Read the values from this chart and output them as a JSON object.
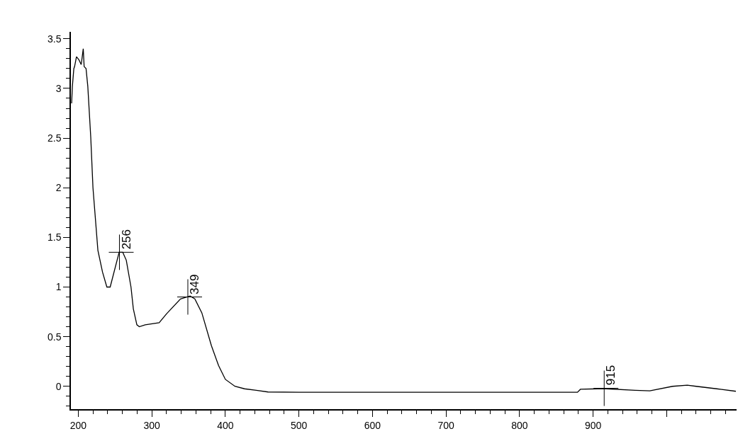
{
  "chart_data": {
    "type": "line",
    "x": [
      191,
      192,
      194,
      195,
      197.6,
      200.8,
      204,
      206.8,
      208,
      210.6,
      213,
      217,
      220,
      226.7,
      233,
      238.9,
      243.4,
      255.6,
      260.5,
      265.3,
      271.7,
      274.9,
      279.7,
      283,
      291,
      310,
      320,
      339,
      352,
      358.5,
      368,
      381,
      390.7,
      400,
      413,
      426,
      442,
      458,
      500,
      600,
      700,
      800,
      878.7,
      882.7,
      906,
      918,
      957,
      977,
      1008,
      1028,
      1040,
      1068,
      1094
    ],
    "series": [
      {
        "color": "#000000",
        "values": [
          2.85,
          3.02,
          3.2,
          3.22,
          3.32,
          3.29,
          3.24,
          3.4,
          3.22,
          3.2,
          3.02,
          2.51,
          2.0,
          1.37,
          1.15,
          1.0,
          1.0,
          1.35,
          1.35,
          1.27,
          1.0,
          0.78,
          0.62,
          0.6,
          0.62,
          0.64,
          0.73,
          0.88,
          0.91,
          0.88,
          0.74,
          0.41,
          0.21,
          0.07,
          0.0,
          -0.025,
          -0.04,
          -0.057,
          -0.06,
          -0.06,
          -0.06,
          -0.06,
          -0.06,
          -0.03,
          -0.025,
          -0.025,
          -0.04,
          -0.045,
          0.0,
          0.012,
          0.0,
          -0.025,
          -0.05
        ]
      }
    ],
    "xlim": [
      190,
      1095
    ],
    "ylim": [
      -0.23,
      3.57
    ],
    "xticks": [
      200,
      300,
      400,
      500,
      600,
      700,
      800,
      900,
      {
        "value": 1000,
        "label": null
      }
    ],
    "yticks": [
      0,
      0.5,
      1,
      1.5,
      2,
      2.5,
      3,
      3.5
    ],
    "annotations": [
      {
        "text": "256",
        "x": 256,
        "y": 1.35
      },
      {
        "text": "349",
        "x": 349,
        "y": 0.9
      },
      {
        "text": "915",
        "x": 915,
        "y": -0.02
      }
    ],
    "marker": "none",
    "line_style": "solid"
  }
}
